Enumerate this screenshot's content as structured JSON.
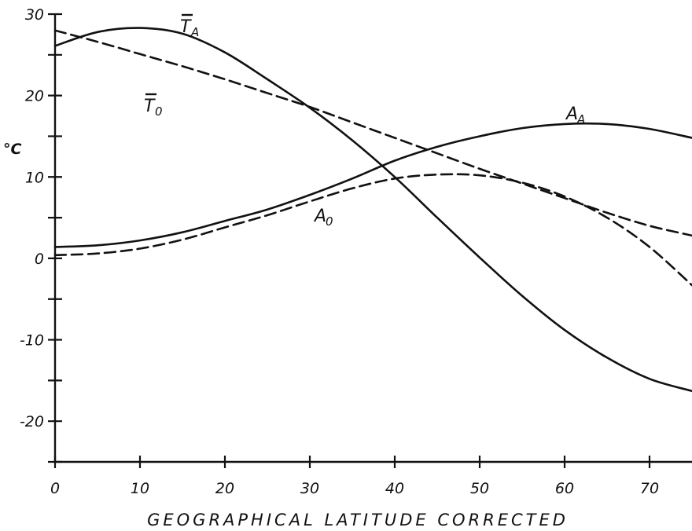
{
  "chart_data": {
    "type": "line",
    "xlabel": "GEOGRAPHICAL LATITUDE CORRECTED",
    "ylabel": "°C",
    "xlim": [
      0,
      75
    ],
    "ylim": [
      -25,
      30
    ],
    "x_ticks": [
      "0",
      "10",
      "20",
      "30",
      "40",
      "50",
      "60",
      "70"
    ],
    "y_ticks": [
      "30",
      "20",
      "10",
      "0",
      "-10",
      "-20"
    ],
    "grid": false,
    "series": [
      {
        "name": "T_A",
        "label_main": "T",
        "label_sub": "A",
        "overbar": true,
        "style": "solid",
        "x": [
          0,
          5,
          10,
          15,
          20,
          25,
          30,
          35,
          40,
          45,
          50,
          55,
          60,
          65,
          70,
          75
        ],
        "y": [
          26.1,
          27.8,
          28.3,
          27.6,
          25.3,
          22.0,
          18.5,
          14.5,
          10.0,
          5.0,
          0.1,
          -4.6,
          -8.8,
          -12.2,
          -14.8,
          -16.3
        ]
      },
      {
        "name": "T_0",
        "label_main": "T",
        "label_sub": "0",
        "overbar": true,
        "style": "dashed",
        "x": [
          0,
          5,
          10,
          15,
          20,
          25,
          30,
          35,
          40,
          45,
          50,
          55,
          60,
          65,
          70,
          75
        ],
        "y": [
          28.0,
          26.6,
          25.1,
          23.6,
          22.0,
          20.3,
          18.6,
          16.7,
          14.8,
          12.9,
          11.0,
          9.2,
          7.4,
          5.6,
          4.0,
          2.8
        ]
      },
      {
        "name": "A_A",
        "label_main": "A",
        "label_sub": "A",
        "overbar": false,
        "style": "solid",
        "x": [
          0,
          5,
          10,
          15,
          20,
          25,
          30,
          35,
          40,
          45,
          50,
          55,
          60,
          65,
          70,
          75
        ],
        "y": [
          1.4,
          1.6,
          2.2,
          3.2,
          4.6,
          6.0,
          7.8,
          9.8,
          12.0,
          13.7,
          15.0,
          16.0,
          16.5,
          16.5,
          15.9,
          14.8
        ]
      },
      {
        "name": "A_0",
        "label_main": "A",
        "label_sub": "0",
        "overbar": false,
        "style": "dashed",
        "x": [
          0,
          5,
          10,
          15,
          20,
          25,
          30,
          35,
          40,
          45,
          50,
          55,
          60,
          65,
          70,
          75
        ],
        "y": [
          0.4,
          0.6,
          1.2,
          2.3,
          3.8,
          5.3,
          7.0,
          8.6,
          9.8,
          10.3,
          10.2,
          9.3,
          7.6,
          5.0,
          1.4,
          -3.3
        ]
      }
    ]
  }
}
